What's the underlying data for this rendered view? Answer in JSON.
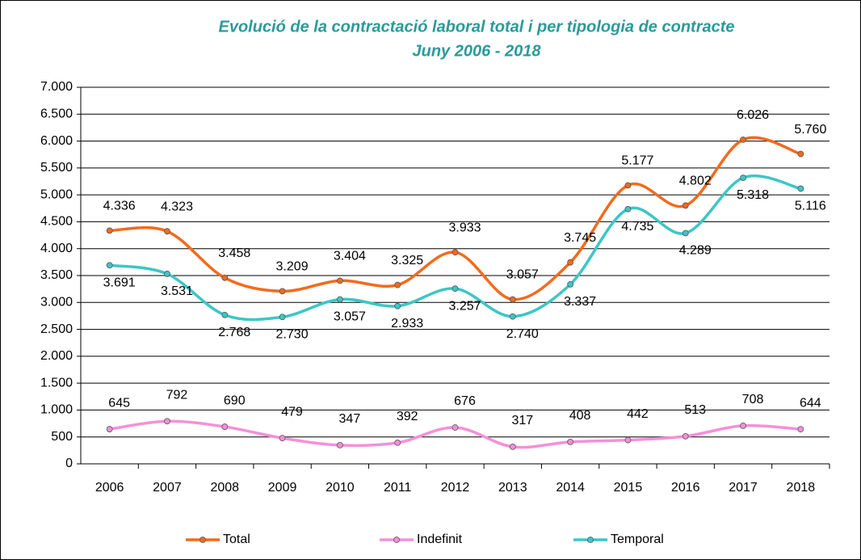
{
  "chart_data": {
    "type": "line",
    "title": "Evolució de la contractació laboral total i per tipologia de contracte",
    "subtitle": "Juny 2006 - 2018",
    "categories": [
      "2006",
      "2007",
      "2008",
      "2009",
      "2010",
      "2011",
      "2012",
      "2013",
      "2014",
      "2015",
      "2016",
      "2017",
      "2018"
    ],
    "series": [
      {
        "name": "Total",
        "color": "#f26b1d",
        "values": [
          4336,
          4323,
          3458,
          3209,
          3404,
          3325,
          3933,
          3057,
          3745,
          5177,
          4802,
          6026,
          5760
        ],
        "value_labels": [
          "4.336",
          "4.323",
          "3.458",
          "3.209",
          "3.404",
          "3.325",
          "3.933",
          "3.057",
          "3.745",
          "5.177",
          "4.802",
          "6.026",
          "5.760"
        ]
      },
      {
        "name": "Indefinit",
        "color": "#f590d8",
        "values": [
          645,
          792,
          690,
          479,
          347,
          392,
          676,
          317,
          408,
          442,
          513,
          708,
          644
        ]
      },
      {
        "name": "Temporal",
        "color": "#3cc6c6",
        "values": [
          3691,
          3531,
          2768,
          2730,
          3057,
          2933,
          3257,
          2740,
          3337,
          4735,
          4289,
          5318,
          5116
        ],
        "value_labels": [
          "3.691",
          "3.531",
          "2.768",
          "2.730",
          "3.057",
          "2.933",
          "3.257",
          "2.740",
          "3.337",
          "4.735",
          "4.289",
          "5.318",
          "5.116"
        ]
      }
    ],
    "ylim": [
      0,
      7000
    ],
    "yticks": [
      0,
      500,
      {
        "value": 1000,
        "label": "1.000"
      },
      {
        "value": 1500,
        "label": "1.500"
      },
      {
        "value": 2000,
        "label": "2.000"
      },
      {
        "value": 2500,
        "label": "2.500"
      },
      {
        "value": 3000,
        "label": "3.000"
      },
      {
        "value": 3500,
        "label": "3.500"
      },
      {
        "value": 4000,
        "label": "4.000"
      },
      {
        "value": 4500,
        "label": "4.500"
      },
      {
        "value": 5000,
        "label": "5.000"
      },
      {
        "value": 5500,
        "label": "5.500"
      },
      {
        "value": 6000,
        "label": "6.000"
      },
      {
        "value": 6500,
        "label": "6.500"
      },
      {
        "value": 7000,
        "label": "7.000"
      }
    ],
    "grid": true,
    "legend": "bottom"
  }
}
